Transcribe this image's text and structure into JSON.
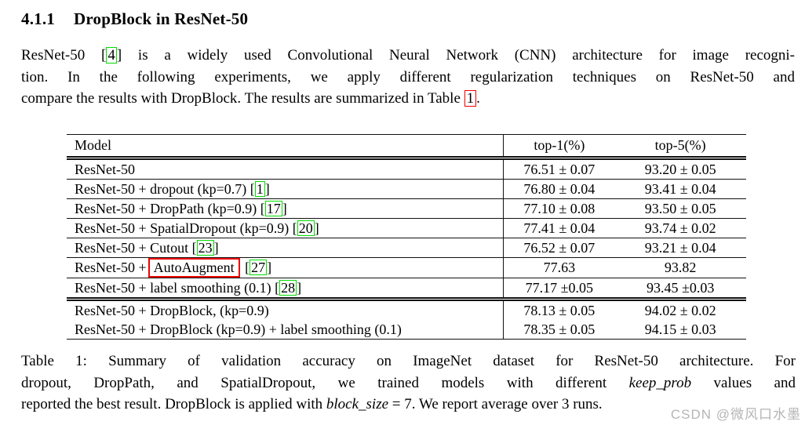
{
  "heading": {
    "number": "4.1.1",
    "title": "DropBlock in ResNet-50"
  },
  "paragraph": {
    "l1a": "ResNet-50 [",
    "l1cite": "4",
    "l1b": "] is a widely used Convolutional Neural Network (CNN) architecture for image recogni-",
    "l2": "tion. In the following experiments, we apply different regularization techniques on ResNet-50 and",
    "l3a": "compare the results with DropBlock. The results are summarized in Table ",
    "l3ref": "1",
    "l3b": "."
  },
  "table": {
    "headers": {
      "model": "Model",
      "top1": "top-1(%)",
      "top5": "top-5(%)"
    },
    "rows": [
      {
        "model": "ResNet-50",
        "top1": "76.51 ± 0.07",
        "top5": "93.20 ± 0.05"
      },
      {
        "model": "ResNet-50 + dropout (kp=0.7) ",
        "open": "[",
        "cite": "1",
        "close": "]",
        "top1": "76.80 ± 0.04",
        "top5": "93.41 ± 0.04"
      },
      {
        "model": "ResNet-50 + DropPath (kp=0.9) ",
        "open": "[",
        "cite": "17",
        "close": "]",
        "top1": "77.10 ± 0.08",
        "top5": "93.50 ± 0.05"
      },
      {
        "model": "ResNet-50 + SpatialDropout (kp=0.9) ",
        "open": "[",
        "cite": "20",
        "close": "]",
        "top1": "77.41 ± 0.04",
        "top5": "93.74 ± 0.02"
      },
      {
        "model": "ResNet-50 + Cutout ",
        "open": "[",
        "cite": "23",
        "close": "]",
        "top1": "76.52 ± 0.07",
        "top5": "93.21 ± 0.04"
      },
      {
        "model": "ResNet-50 +",
        "redbox": "AutoAugment",
        "open": " [",
        "cite": "27",
        "close": "]",
        "top1": "77.63",
        "top5": "93.82"
      },
      {
        "model": "ResNet-50 + label smoothing (0.1) ",
        "open": "[",
        "cite": "28",
        "close": "]",
        "top1": "77.17 ±0.05",
        "top5": "93.45 ±0.03"
      },
      {
        "model": "ResNet-50 + DropBlock, (kp=0.9)",
        "top1": "78.13 ± 0.05",
        "top5": "94.02 ± 0.02"
      },
      {
        "model": "ResNet-50 + DropBlock (kp=0.9) + label smoothing (0.1)",
        "top1": "78.35 ± 0.05",
        "top5": "94.15 ± 0.03"
      }
    ]
  },
  "caption": {
    "l1": "Table 1: Summary of validation accuracy on ImageNet dataset for ResNet-50 architecture.  For",
    "l2a": "dropout, DropPath, and SpatialDropout, we trained models with different ",
    "l2i": "keep_prob",
    "l2b": " values and",
    "l3a": "reported the best result. DropBlock is applied with ",
    "l3i": "block_size",
    "l3b": " = 7. We report average over 3 runs."
  },
  "watermark": "CSDN @微风口水墨",
  "colors": {
    "citation_box": "#00dd00",
    "reference_box": "#ee0000",
    "annotation_box": "#ee0000",
    "table_rule": "#111111",
    "watermark_gray": "#b5b5b5"
  }
}
